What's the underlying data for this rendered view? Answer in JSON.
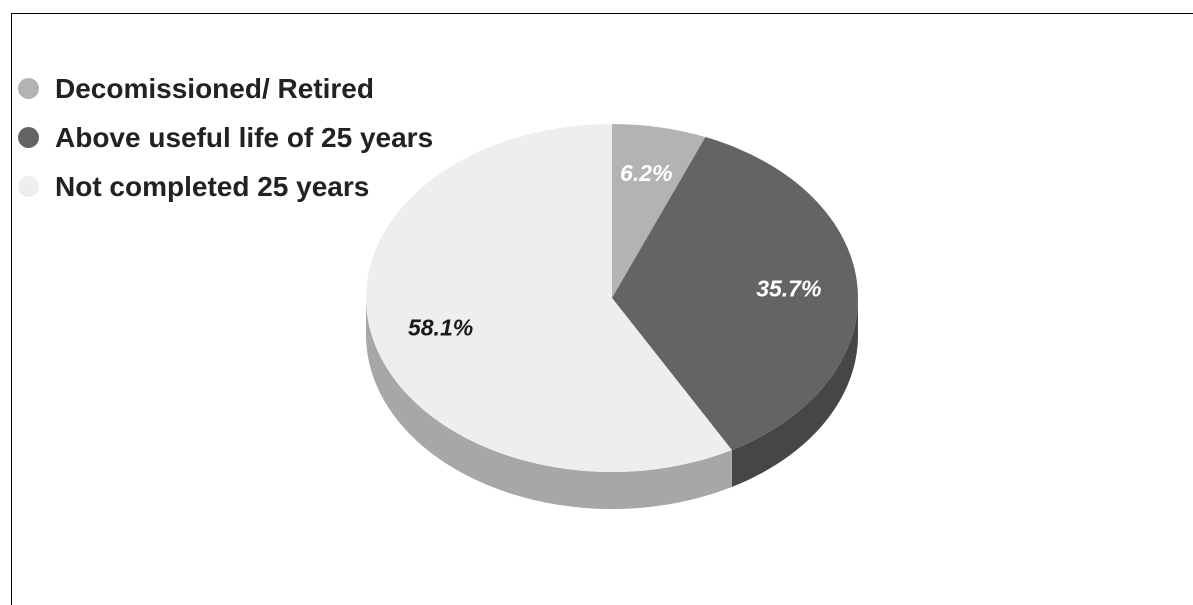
{
  "chart_data": {
    "type": "pie",
    "style": "3d",
    "slices": [
      {
        "label": "Decomissioned/ Retired",
        "value": 6.2,
        "value_label": "6.2%",
        "color": "#b3b3b3",
        "side_color": "#8f8f8f",
        "text_color": "#ffffff"
      },
      {
        "label": "Above useful life of 25 years",
        "value": 35.7,
        "value_label": "35.7%",
        "color": "#646464",
        "side_color": "#464646",
        "text_color": "#ffffff"
      },
      {
        "label": "Not completed 25 years",
        "value": 58.1,
        "value_label": "58.1%",
        "color": "#eeeeee",
        "side_color": "#a7a7a7",
        "text_color": "#1a1a1a"
      }
    ],
    "legend_position": "top-left"
  }
}
